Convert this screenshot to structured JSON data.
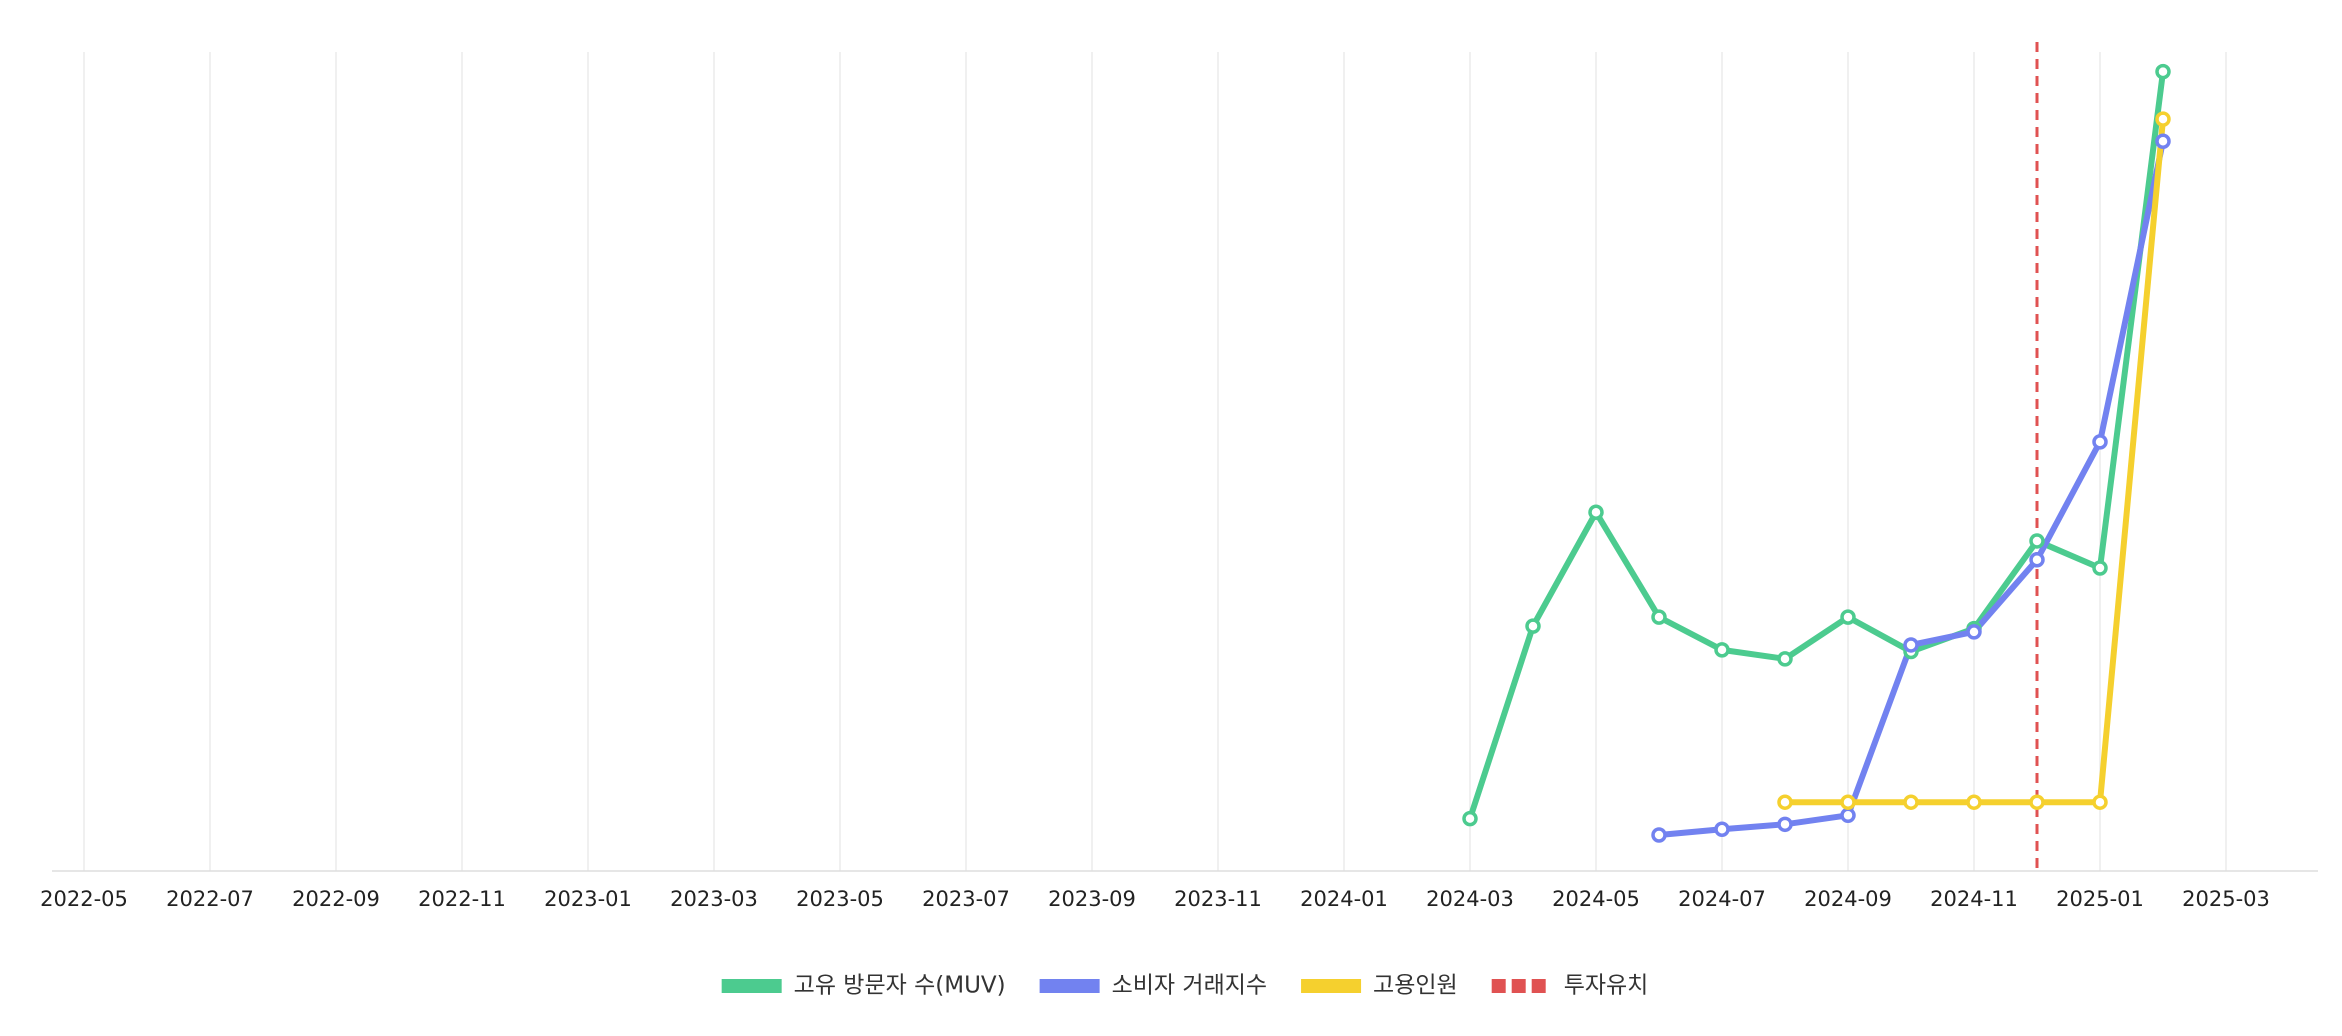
{
  "chart_data": {
    "type": "line",
    "x": [
      "2024-03",
      "2024-04",
      "2024-05",
      "2024-06",
      "2024-07",
      "2024-08",
      "2024-09",
      "2024-10",
      "2024-11",
      "2024-12",
      "2025-01",
      "2025-02"
    ],
    "series": [
      {
        "name": "고유 방문자 수(MUV)",
        "color": "#4ccb8f",
        "values": [
          6.4,
          29.9,
          43.8,
          31.0,
          27.0,
          25.9,
          31.0,
          26.8,
          29.6,
          40.3,
          37.0,
          97.6
        ]
      },
      {
        "name": "소비자 거래지수",
        "color": "#7282f0",
        "values": [
          null,
          null,
          null,
          4.4,
          5.1,
          5.7,
          6.8,
          27.6,
          29.2,
          38.0,
          52.4,
          89.1
        ]
      },
      {
        "name": "고용인원",
        "color": "#f5d02e",
        "values": [
          null,
          null,
          null,
          null,
          null,
          8.4,
          8.4,
          8.4,
          8.4,
          8.4,
          8.4,
          91.8
        ]
      }
    ],
    "event": {
      "name": "투자유치",
      "x": "2024-12",
      "color": "#e05252"
    },
    "ylim": [
      0,
      100
    ],
    "xticks": [
      "2022-05",
      "2022-07",
      "2022-09",
      "2022-11",
      "2023-01",
      "2023-03",
      "2023-05",
      "2023-07",
      "2023-09",
      "2023-11",
      "2024-01",
      "2024-03",
      "2024-05",
      "2024-07",
      "2024-09",
      "2024-11",
      "2025-01",
      "2025-03"
    ],
    "grid": true
  }
}
